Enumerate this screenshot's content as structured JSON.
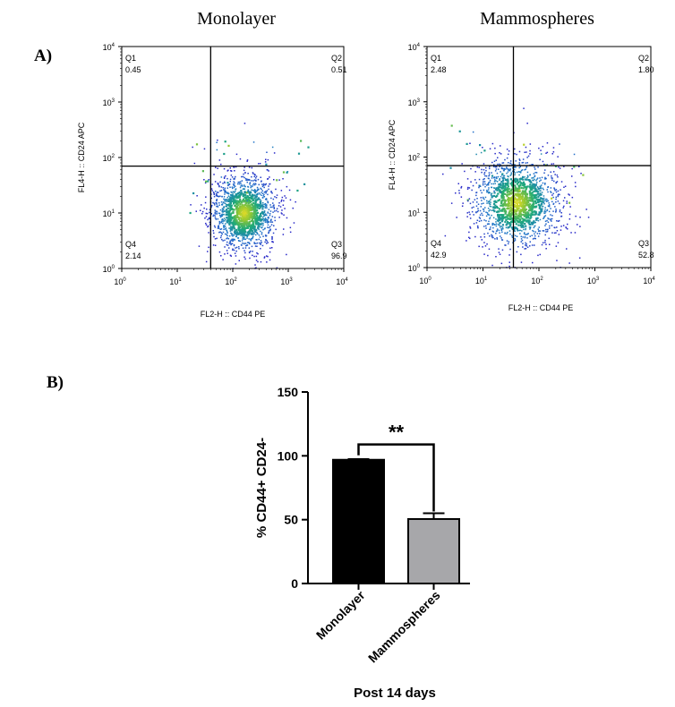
{
  "panel_a_label": "A)",
  "panel_b_label": "B)",
  "chart_data": [
    {
      "type": "scatter",
      "title": "Monolayer",
      "xlabel": "FL2-H :: CD44 PE",
      "ylabel": "FL4-H :: CD24 APC",
      "x_scale": "log",
      "y_scale": "log",
      "xlim": [
        1,
        10000
      ],
      "ylim": [
        1,
        10000
      ],
      "x_ticks": [
        {
          "base": "10",
          "exp": "0"
        },
        {
          "base": "10",
          "exp": "1"
        },
        {
          "base": "10",
          "exp": "2"
        },
        {
          "base": "10",
          "exp": "3"
        },
        {
          "base": "10",
          "exp": "4"
        }
      ],
      "y_ticks": [
        {
          "base": "10",
          "exp": "0"
        },
        {
          "base": "10",
          "exp": "1"
        },
        {
          "base": "10",
          "exp": "2"
        },
        {
          "base": "10",
          "exp": "3"
        },
        {
          "base": "10",
          "exp": "4"
        }
      ],
      "gate": {
        "x": 40,
        "y": 70
      },
      "population": {
        "center_x": 160,
        "center_y": 10,
        "spread_log_x": 0.3,
        "spread_log_y": 0.35
      },
      "quadrants": [
        {
          "name": "Q1",
          "value": "0.45"
        },
        {
          "name": "Q2",
          "value": "0.51"
        },
        {
          "name": "Q3",
          "value": "96.9"
        },
        {
          "name": "Q4",
          "value": "2.14"
        }
      ]
    },
    {
      "type": "scatter",
      "title": "Mammospheres",
      "xlabel": "FL2-H :: CD44 PE",
      "ylabel": "FL4-H :: CD24 APC",
      "x_scale": "log",
      "y_scale": "log",
      "xlim": [
        1,
        10000
      ],
      "ylim": [
        1,
        10000
      ],
      "x_ticks": [
        {
          "base": "10",
          "exp": "0"
        },
        {
          "base": "10",
          "exp": "1"
        },
        {
          "base": "10",
          "exp": "2"
        },
        {
          "base": "10",
          "exp": "3"
        },
        {
          "base": "10",
          "exp": "4"
        }
      ],
      "y_ticks": [
        {
          "base": "10",
          "exp": "0"
        },
        {
          "base": "10",
          "exp": "1"
        },
        {
          "base": "10",
          "exp": "2"
        },
        {
          "base": "10",
          "exp": "3"
        },
        {
          "base": "10",
          "exp": "4"
        }
      ],
      "gate": {
        "x": 35,
        "y": 70
      },
      "population": {
        "center_x": 40,
        "center_y": 15,
        "spread_log_x": 0.4,
        "spread_log_y": 0.42
      },
      "quadrants": [
        {
          "name": "Q1",
          "value": "2.48"
        },
        {
          "name": "Q2",
          "value": "1.80"
        },
        {
          "name": "Q3",
          "value": "52.8"
        },
        {
          "name": "Q4",
          "value": "42.9"
        }
      ]
    },
    {
      "type": "bar",
      "categories": [
        "Monolayer",
        "Mammospheres"
      ],
      "values": [
        96.9,
        50.5
      ],
      "errors": [
        0.5,
        4.5
      ],
      "colors": [
        "#000000",
        "#a7a7aa"
      ],
      "xlabel": "Post 14 days",
      "ylabel": "% CD44+ CD24-",
      "ylim": [
        0,
        150
      ],
      "y_ticks": [
        "0",
        "50",
        "100",
        "150"
      ],
      "significance": "**"
    }
  ]
}
